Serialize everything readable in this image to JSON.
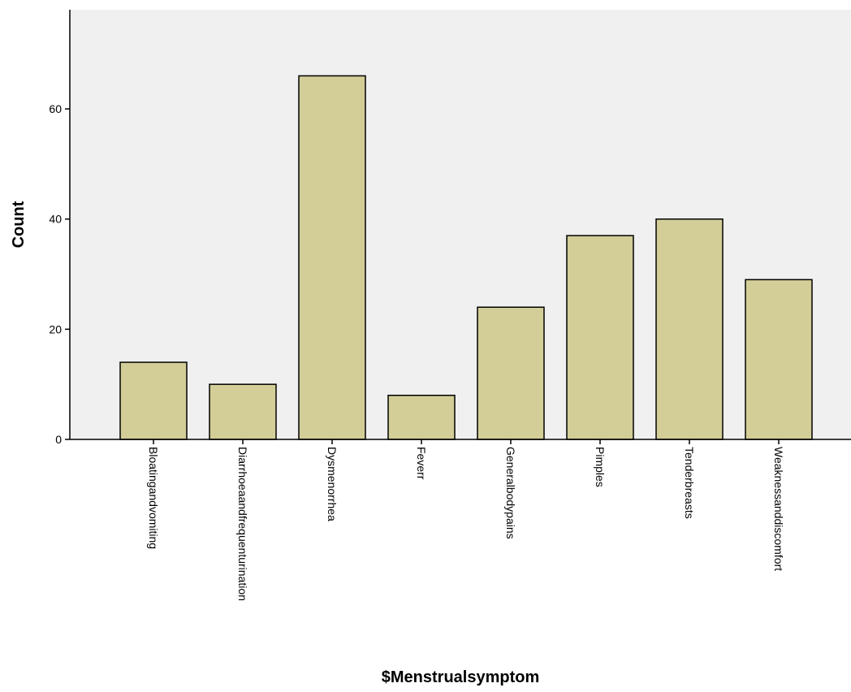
{
  "chart_data": {
    "type": "bar",
    "categories": [
      "Bloatingandvomiting",
      "Diarrhoeaandfrequenturination",
      "Dysmenorrhea",
      "Feverr",
      "Generalbodypains",
      "Pimples",
      "Tenderbreasts",
      "Weaknessanddiscomfort"
    ],
    "values": [
      14,
      10,
      66,
      8,
      24,
      37,
      40,
      29
    ],
    "xlabel": "$Menstrualsymptom",
    "ylabel": "Count",
    "ylim": [
      0,
      78
    ],
    "yticks": [
      0,
      20,
      40,
      60
    ],
    "grid": false,
    "colors": {
      "plot_background": "#f0f0f0",
      "bar_fill": "#d3ce97",
      "bar_stroke": "#000000"
    }
  }
}
